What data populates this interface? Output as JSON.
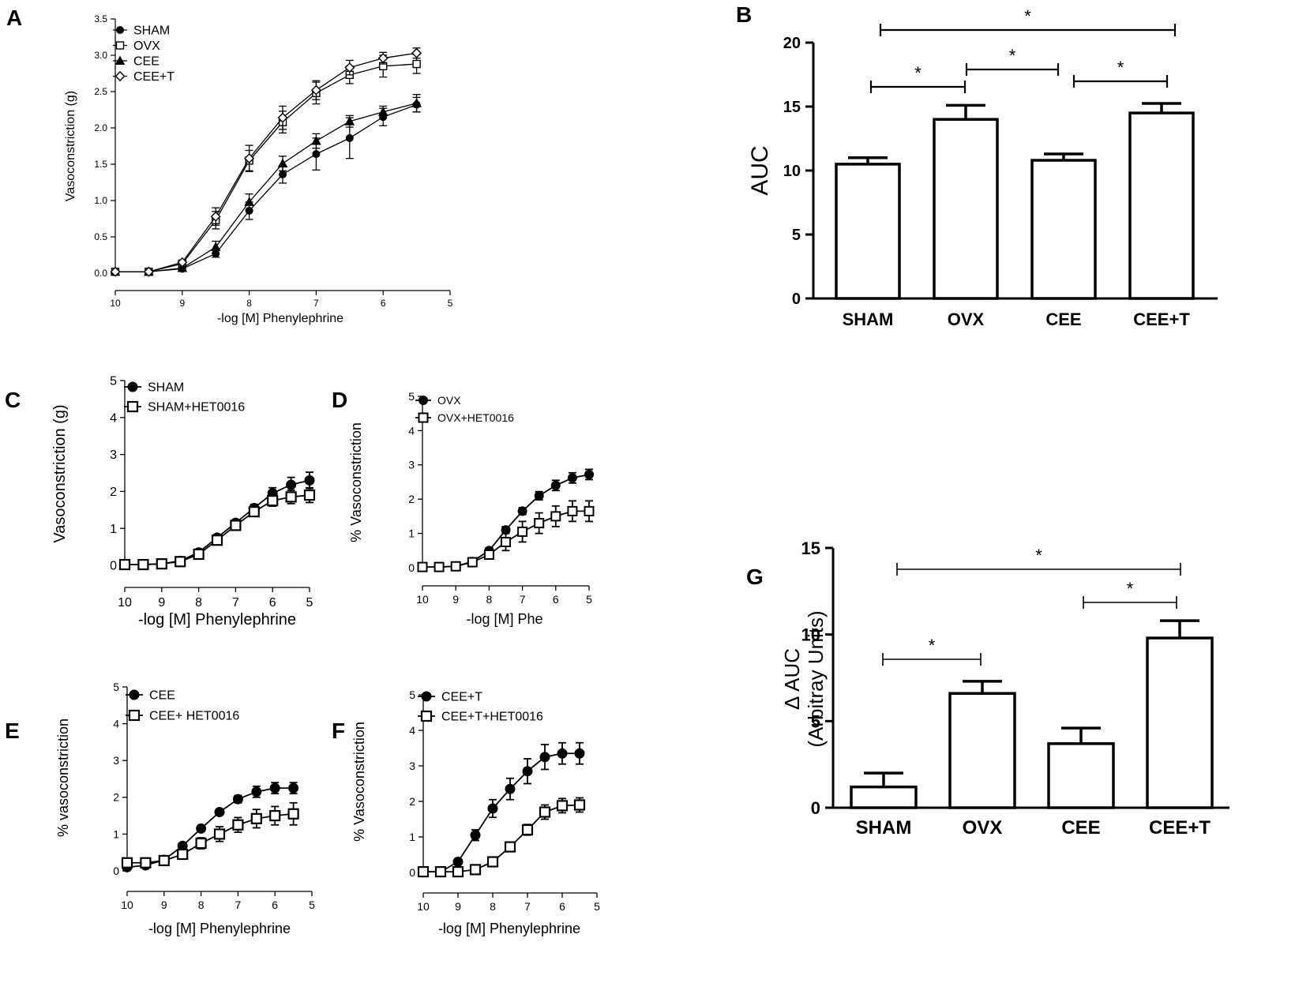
{
  "panels": {
    "A": "A",
    "B": "B",
    "C": "C",
    "D": "D",
    "E": "E",
    "F": "F",
    "G": "G"
  },
  "chart_data": [
    {
      "id": "A",
      "type": "line",
      "x": [
        10,
        9.5,
        9,
        8.5,
        8,
        7.5,
        7,
        6.5,
        6,
        5.5
      ],
      "xticks": [
        10,
        9,
        8,
        7,
        6,
        5
      ],
      "xlim": [
        10,
        5
      ],
      "ylim": [
        0,
        3.5
      ],
      "yticks": [
        "0.0",
        "0.5",
        "1.0",
        "1.5",
        "2.0",
        "2.5",
        "3.0",
        "3.5"
      ],
      "xlabel": "-log [M]  Phenylephrine",
      "ylabel": "Vasoconstriction (g)",
      "series": [
        {
          "name": "SHAM",
          "marker": "circle-filled",
          "values": [
            0.02,
            0.02,
            0.06,
            0.27,
            0.86,
            1.36,
            1.64,
            1.86,
            2.15,
            2.32
          ],
          "errors": [
            0.02,
            0.02,
            0.03,
            0.05,
            0.12,
            0.12,
            0.22,
            0.28,
            0.12,
            0.1
          ]
        },
        {
          "name": "OVX",
          "marker": "square-open",
          "values": [
            0.02,
            0.02,
            0.13,
            0.73,
            1.55,
            2.08,
            2.48,
            2.73,
            2.85,
            2.88
          ],
          "errors": [
            0.02,
            0.02,
            0.04,
            0.12,
            0.14,
            0.15,
            0.15,
            0.12,
            0.15,
            0.13
          ]
        },
        {
          "name": "CEE",
          "marker": "triangle-filled",
          "values": [
            0.02,
            0.02,
            0.07,
            0.36,
            0.98,
            1.51,
            1.82,
            2.09,
            2.22,
            2.34
          ],
          "errors": [
            0.02,
            0.02,
            0.03,
            0.08,
            0.11,
            0.1,
            0.1,
            0.08,
            0.08,
            0.12
          ]
        },
        {
          "name": "CEE+T",
          "marker": "diamond-open",
          "values": [
            0.02,
            0.02,
            0.15,
            0.78,
            1.58,
            2.14,
            2.52,
            2.83,
            2.96,
            3.03
          ],
          "errors": [
            0.02,
            0.02,
            0.03,
            0.12,
            0.18,
            0.16,
            0.13,
            0.1,
            0.08,
            0.07
          ]
        }
      ]
    },
    {
      "id": "B",
      "type": "bar",
      "categories": [
        "SHAM",
        "OVX",
        "CEE",
        "CEE+T"
      ],
      "values": [
        10.5,
        14.0,
        10.8,
        14.5
      ],
      "errors": [
        0.5,
        1.1,
        0.5,
        0.75
      ],
      "ylim": [
        0,
        20
      ],
      "yticks": [
        "0",
        "5",
        "10",
        "15",
        "20"
      ],
      "ylabel": "AUC",
      "significance": [
        {
          "from": 0,
          "to": 1,
          "label": "*"
        },
        {
          "from": 1,
          "to": 2,
          "label": "*"
        },
        {
          "from": 2,
          "to": 3,
          "label": "*"
        },
        {
          "from": 0,
          "to": 3,
          "label": "*"
        }
      ]
    },
    {
      "id": "C",
      "type": "line",
      "x": [
        10,
        9.5,
        9,
        8.5,
        8,
        7.5,
        7,
        6.5,
        6,
        5.5,
        5
      ],
      "xticks": [
        10,
        9,
        8,
        7,
        6,
        5
      ],
      "xlim": [
        10,
        5
      ],
      "ylim": [
        0,
        5
      ],
      "yticks": [
        "0",
        "1",
        "2",
        "3",
        "4",
        "5"
      ],
      "xlabel": "-log [M]  Phenylephrine",
      "ylabel": "Vasoconstriction (g)",
      "series": [
        {
          "name": "SHAM",
          "marker": "circle-filled",
          "values": [
            0.02,
            0.02,
            0.04,
            0.12,
            0.35,
            0.75,
            1.15,
            1.55,
            1.95,
            2.18,
            2.3
          ],
          "errors": [
            0,
            0,
            0,
            0.05,
            0.05,
            0.06,
            0.08,
            0.1,
            0.15,
            0.2,
            0.22
          ]
        },
        {
          "name": "SHAM+HET0016",
          "marker": "square-open",
          "values": [
            0.02,
            0.02,
            0.04,
            0.1,
            0.3,
            0.68,
            1.08,
            1.45,
            1.75,
            1.85,
            1.9
          ],
          "errors": [
            0,
            0,
            0,
            0.05,
            0.05,
            0.06,
            0.08,
            0.1,
            0.15,
            0.18,
            0.2
          ]
        }
      ]
    },
    {
      "id": "D",
      "type": "line",
      "x": [
        10,
        9.5,
        9,
        8.5,
        8,
        7.5,
        7,
        6.5,
        6,
        5.5,
        5
      ],
      "xticks": [
        10,
        9,
        8,
        7,
        6,
        5
      ],
      "xlim": [
        10,
        5
      ],
      "ylim": [
        0,
        5
      ],
      "yticks": [
        "0",
        "1",
        "2",
        "3",
        "4",
        "5"
      ],
      "xlabel": "-log [M]  Phe",
      "ylabel": "% Vasoconstriction",
      "series": [
        {
          "name": "OVX",
          "marker": "circle-filled",
          "values": [
            0.02,
            0.02,
            0.04,
            0.18,
            0.5,
            1.1,
            1.65,
            2.1,
            2.4,
            2.62,
            2.72
          ],
          "errors": [
            0,
            0,
            0,
            0.05,
            0.08,
            0.1,
            0.1,
            0.12,
            0.15,
            0.15,
            0.15
          ]
        },
        {
          "name": "OVX+HET0016",
          "marker": "square-open",
          "values": [
            0.02,
            0.02,
            0.04,
            0.16,
            0.38,
            0.75,
            1.05,
            1.3,
            1.5,
            1.65,
            1.65
          ],
          "errors": [
            0,
            0,
            0,
            0.05,
            0.1,
            0.25,
            0.3,
            0.3,
            0.3,
            0.3,
            0.3
          ]
        }
      ]
    },
    {
      "id": "E",
      "type": "line",
      "x": [
        10,
        9.5,
        9,
        8.5,
        8,
        7.5,
        7,
        6.5,
        6,
        5.5
      ],
      "xticks": [
        10,
        9,
        8,
        7,
        6,
        5
      ],
      "xlim": [
        10,
        5
      ],
      "ylim": [
        0,
        5
      ],
      "yticks": [
        "0",
        "1",
        "2",
        "3",
        "4",
        "5"
      ],
      "xlabel": "-log [M]  Phenylephrine",
      "ylabel": "% vasoconstriction",
      "series": [
        {
          "name": "CEE",
          "marker": "circle-filled",
          "values": [
            0.1,
            0.15,
            0.3,
            0.68,
            1.15,
            1.6,
            1.95,
            2.15,
            2.25,
            2.25
          ],
          "errors": [
            0.05,
            0.05,
            0.05,
            0.05,
            0.08,
            0.08,
            0.1,
            0.15,
            0.15,
            0.15
          ]
        },
        {
          "name": "CEE+ HET0016",
          "marker": "square-open",
          "values": [
            0.22,
            0.22,
            0.28,
            0.45,
            0.75,
            1.0,
            1.25,
            1.42,
            1.5,
            1.55
          ],
          "errors": [
            0.05,
            0.05,
            0.05,
            0.1,
            0.15,
            0.2,
            0.2,
            0.25,
            0.25,
            0.3
          ]
        }
      ]
    },
    {
      "id": "F",
      "type": "line",
      "x": [
        10,
        9.5,
        9,
        8.5,
        8,
        7.5,
        7,
        6.5,
        6,
        5.5
      ],
      "xticks": [
        10,
        9,
        8,
        7,
        6,
        5
      ],
      "xlim": [
        10,
        5
      ],
      "ylim": [
        0,
        5
      ],
      "yticks": [
        "0",
        "1",
        "2",
        "3",
        "4",
        "5"
      ],
      "xlabel": "-log [M]  Phenylephrine",
      "ylabel": "% Vasoconstriction",
      "series": [
        {
          "name": "CEE+T",
          "marker": "circle-filled",
          "values": [
            0.02,
            0.02,
            0.3,
            1.05,
            1.8,
            2.35,
            2.85,
            3.25,
            3.35,
            3.35
          ],
          "errors": [
            0,
            0,
            0.05,
            0.15,
            0.25,
            0.3,
            0.35,
            0.35,
            0.3,
            0.3
          ]
        },
        {
          "name": "CEE+T+HET0016",
          "marker": "square-open",
          "values": [
            0.02,
            0.02,
            0.02,
            0.08,
            0.3,
            0.72,
            1.2,
            1.7,
            1.88,
            1.9
          ],
          "errors": [
            0,
            0,
            0,
            0.05,
            0.05,
            0.1,
            0.15,
            0.2,
            0.2,
            0.2
          ]
        }
      ]
    },
    {
      "id": "G",
      "type": "bar",
      "categories": [
        "SHAM",
        "OVX",
        "CEE",
        "CEE+T"
      ],
      "values": [
        1.2,
        6.6,
        3.7,
        9.8
      ],
      "errors": [
        0.8,
        0.7,
        0.9,
        1.0
      ],
      "ylim": [
        0,
        15
      ],
      "yticks": [
        "0",
        "5",
        "10",
        "15"
      ],
      "ylabel_lines": [
        "Δ AUC",
        "(Arbitray Units)"
      ],
      "significance": [
        {
          "from": 0,
          "to": 1,
          "label": "*"
        },
        {
          "from": 2,
          "to": 3,
          "label": "*"
        },
        {
          "from": 0,
          "to": 3,
          "label": "*"
        }
      ]
    }
  ]
}
